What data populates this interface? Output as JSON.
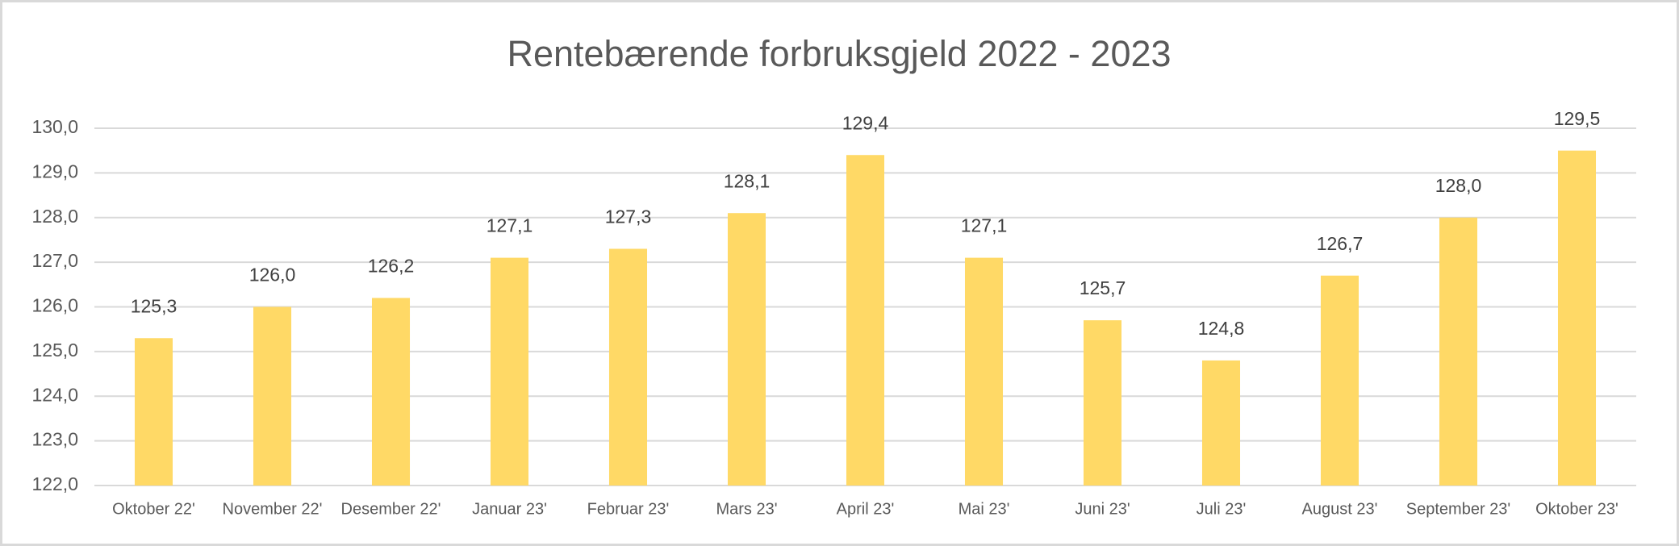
{
  "chart_data": {
    "type": "bar",
    "title": "Rentebærende forbruksgjeld 2022 - 2023",
    "categories": [
      "Oktober 22'",
      "November 22'",
      "Desember 22'",
      "Januar 23'",
      "Februar 23'",
      "Mars 23'",
      "April 23'",
      "Mai 23'",
      "Juni 23'",
      "Juli 23'",
      "August 23'",
      "September 23'",
      "Oktober 23'"
    ],
    "values": [
      125.3,
      126.0,
      126.2,
      127.1,
      127.3,
      128.1,
      129.4,
      127.1,
      125.7,
      124.8,
      126.7,
      128.0,
      129.5
    ],
    "value_labels": [
      "125,3",
      "126,0",
      "126,2",
      "127,1",
      "127,3",
      "128,1",
      "129,4",
      "127,1",
      "125,7",
      "124,8",
      "126,7",
      "128,0",
      "129,5"
    ],
    "color": "#FFD966",
    "ylim": [
      122,
      130
    ],
    "yticks": [
      {
        "value": 122,
        "label": "122,0"
      },
      {
        "value": 123,
        "label": "123,0"
      },
      {
        "value": 124,
        "label": "124,0"
      },
      {
        "value": 125,
        "label": "125,0"
      },
      {
        "value": 126,
        "label": "126,0"
      },
      {
        "value": 127,
        "label": "127,0"
      },
      {
        "value": 128,
        "label": "128,0"
      },
      {
        "value": 129,
        "label": "129,0"
      },
      {
        "value": 130,
        "label": "130,0"
      }
    ],
    "grid": true
  }
}
